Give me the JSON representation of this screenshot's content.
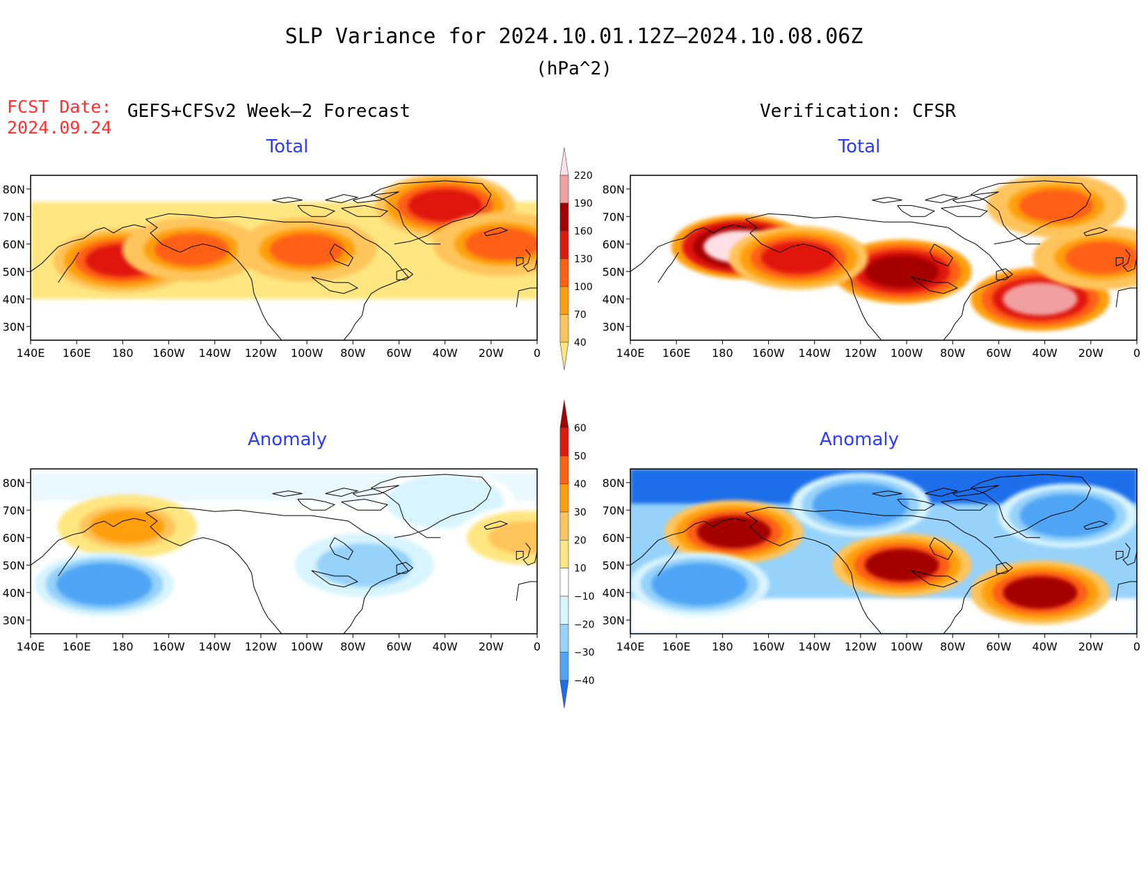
{
  "header": {
    "title": "SLP Variance for 2024.10.01.12Z–2024.10.08.06Z",
    "units": "(hPa^2)",
    "fcst_label": "FCST Date:",
    "fcst_date": "2024.09.24",
    "left_heading": "GEFS+CFSv2 Week–2 Forecast",
    "right_heading": "Verification: CFSR"
  },
  "panels": {
    "total_title": "Total",
    "anomaly_title": "Anomaly"
  },
  "axes": {
    "lon_labels": [
      "140E",
      "160E",
      "180",
      "160W",
      "140W",
      "120W",
      "100W",
      "80W",
      "60W",
      "40W",
      "20W",
      "0"
    ],
    "lat_labels": [
      "80N",
      "70N",
      "60N",
      "50N",
      "40N",
      "30N"
    ],
    "lon_range": [
      140,
      360
    ],
    "lat_range": [
      25,
      85
    ]
  },
  "colorbars": {
    "total": {
      "levels": [
        "40",
        "70",
        "100",
        "130",
        "160",
        "190",
        "220"
      ],
      "colors": [
        "#ffe680",
        "#ffc45c",
        "#ff9f0f",
        "#ff6112",
        "#e0190f",
        "#a50000",
        "#f0a0a0",
        "#ffe0e6"
      ]
    },
    "anomaly": {
      "levels": [
        "60",
        "50",
        "40",
        "30",
        "20",
        "10",
        "−10",
        "−20",
        "−30",
        "−40"
      ],
      "colors": [
        "#a50000",
        "#e0190f",
        "#ff6112",
        "#ff9f0f",
        "#ffc45c",
        "#ffe680",
        "#ffffff",
        "#d8f4ff",
        "#96d2fa",
        "#50a5f5",
        "#1e6eeb"
      ]
    }
  },
  "fields": {
    "forecast_total": [
      {
        "lon": 180,
        "lat": 54,
        "value": 130
      },
      {
        "lon": 210,
        "lat": 58,
        "value": 100
      },
      {
        "lon": 260,
        "lat": 58,
        "value": 100
      },
      {
        "lon": 320,
        "lat": 74,
        "value": 130
      },
      {
        "lon": 345,
        "lat": 60,
        "value": 110
      }
    ],
    "verification_total": [
      {
        "lon": 188,
        "lat": 59,
        "value": 220
      },
      {
        "lon": 258,
        "lat": 50,
        "value": 160
      },
      {
        "lon": 318,
        "lat": 40,
        "value": 190
      },
      {
        "lon": 213,
        "lat": 55,
        "value": 130
      },
      {
        "lon": 325,
        "lat": 74,
        "value": 100
      },
      {
        "lon": 345,
        "lat": 55,
        "value": 100
      }
    ],
    "forecast_anomaly": [
      {
        "lon": 182,
        "lat": 64,
        "value": 30
      },
      {
        "lon": 172,
        "lat": 43,
        "value": -40
      },
      {
        "lon": 285,
        "lat": 50,
        "value": -30
      },
      {
        "lon": 320,
        "lat": 73,
        "value": -20
      },
      {
        "lon": 355,
        "lat": 60,
        "value": 20
      }
    ],
    "verification_anomaly": [
      {
        "lon": 185,
        "lat": 62,
        "value": 60
      },
      {
        "lon": 258,
        "lat": 50,
        "value": 60
      },
      {
        "lon": 318,
        "lat": 40,
        "value": 60
      },
      {
        "lon": 170,
        "lat": 43,
        "value": -40
      },
      {
        "lon": 240,
        "lat": 72,
        "value": -40
      },
      {
        "lon": 330,
        "lat": 68,
        "value": -40
      }
    ]
  }
}
